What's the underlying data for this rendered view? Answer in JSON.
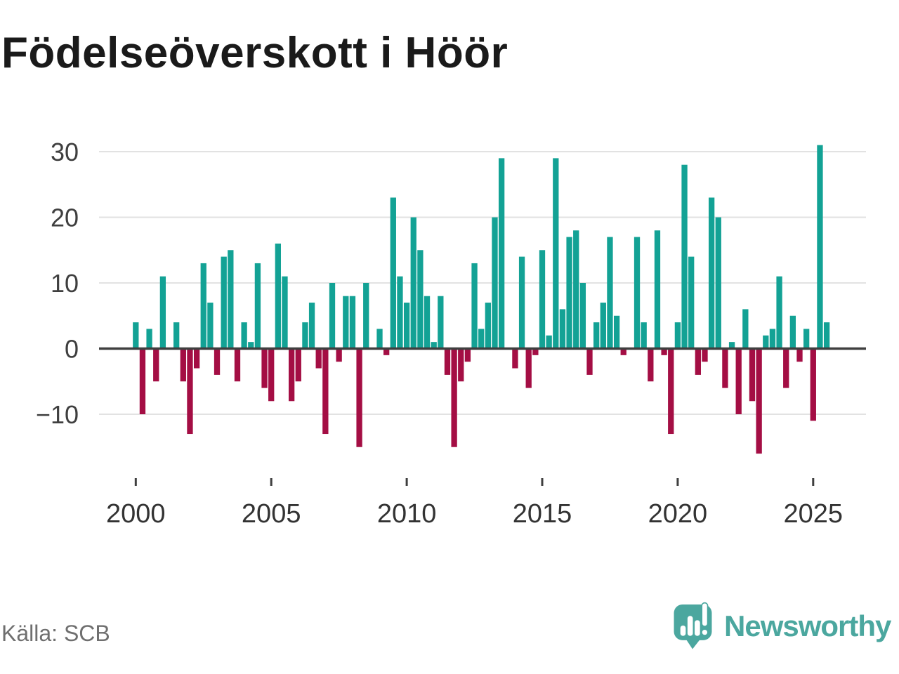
{
  "page": {
    "title": "Födelseöverskott i Höör",
    "source": "Källa: SCB",
    "brand_name": "Newsworthy"
  },
  "colors": {
    "background": "#FFFFFF",
    "positive": "#13A295",
    "negative": "#A40E44",
    "grid": "#E2E2E2",
    "zero_line": "#3F3F3F",
    "tick_mark": "#3F3F3F",
    "y_label_text": "#3F3F3F",
    "x_label_text": "#333333",
    "title_text": "#1A1A1A",
    "source_text": "#6F6F6F",
    "logo": "#4BA79F"
  },
  "chart_data": {
    "type": "bar",
    "title": "Födelseöverskott i Höör",
    "frequency": "quarterly",
    "start_year": 2000,
    "start_quarter": 1,
    "values": [
      4,
      -10,
      3,
      -5,
      11,
      0,
      4,
      -5,
      -13,
      -3,
      13,
      7,
      -4,
      14,
      15,
      -5,
      4,
      1,
      13,
      -6,
      -8,
      16,
      11,
      -8,
      -5,
      4,
      7,
      -3,
      -13,
      10,
      -2,
      8,
      8,
      -15,
      10,
      0,
      3,
      -1,
      23,
      11,
      7,
      20,
      15,
      8,
      1,
      8,
      -4,
      -15,
      -5,
      -2,
      13,
      3,
      7,
      20,
      29,
      0,
      -3,
      14,
      -6,
      -1,
      15,
      2,
      29,
      6,
      17,
      18,
      10,
      -4,
      4,
      7,
      17,
      5,
      -1,
      0,
      17,
      4,
      -5,
      18,
      -1,
      -13,
      4,
      28,
      14,
      -4,
      -2,
      23,
      20,
      -6,
      1,
      -10,
      6,
      -8,
      -16,
      2,
      3,
      11,
      -6,
      5,
      -2,
      3,
      -11,
      31,
      4
    ],
    "x_tick_years": [
      2000,
      2005,
      2010,
      2015,
      2020,
      2025
    ],
    "y_ticks": [
      -10,
      0,
      10,
      20,
      30
    ],
    "ylim": [
      -17,
      32
    ],
    "grid": true,
    "legend_position": "none",
    "xlabel": "",
    "ylabel": ""
  }
}
